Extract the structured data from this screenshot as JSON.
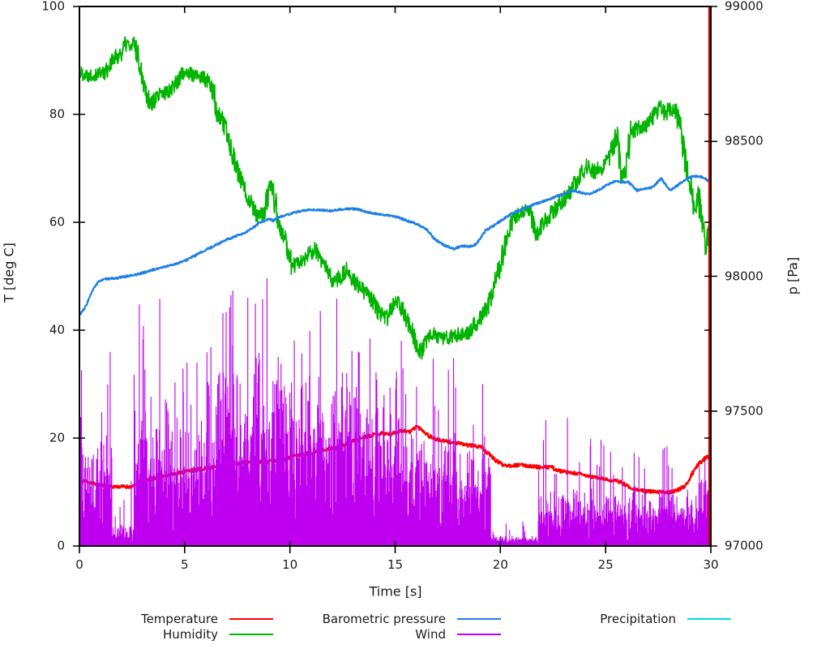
{
  "chart_data": {
    "type": "line",
    "title": "",
    "xlabel": "Time [s]",
    "ylabel_left": "T [deg C]",
    "ylabel_right": "p [Pa]",
    "xlim": [
      0,
      30
    ],
    "ylim_left": [
      0,
      100
    ],
    "ylim_right": [
      97000,
      99000
    ],
    "x_ticks": [
      0,
      5,
      10,
      15,
      20,
      25,
      30
    ],
    "y_ticks_left": [
      0,
      20,
      40,
      60,
      80,
      100
    ],
    "y_ticks_right": [
      97000,
      97500,
      98000,
      98500,
      99000
    ],
    "grid": false,
    "legend_position": "below-chart",
    "series": [
      {
        "name": "Temperature",
        "color": "#ff0000",
        "axis": "left",
        "style": "line",
        "noise": 0.3,
        "legend_slot": {
          "col": 0,
          "row": 0
        },
        "points": [
          [
            0,
            11.6
          ],
          [
            0.2,
            12.1
          ],
          [
            0.5,
            11.8
          ],
          [
            0.9,
            11.3
          ],
          [
            1.3,
            11.1
          ],
          [
            1.5,
            11.0
          ],
          [
            2.0,
            11.0
          ],
          [
            2.6,
            11.0
          ],
          [
            2.75,
            11.8
          ],
          [
            3.2,
            12.3
          ],
          [
            4.0,
            13.0
          ],
          [
            5.0,
            13.8
          ],
          [
            6.0,
            14.4
          ],
          [
            7.0,
            15.0
          ],
          [
            8.0,
            15.5
          ],
          [
            9.0,
            15.7
          ],
          [
            9.8,
            16.0
          ],
          [
            10.1,
            16.7
          ],
          [
            10.6,
            17.0
          ],
          [
            11.0,
            17.3
          ],
          [
            11.6,
            17.9
          ],
          [
            12.3,
            18.2
          ],
          [
            12.9,
            19.3
          ],
          [
            13.4,
            20.0
          ],
          [
            13.9,
            20.6
          ],
          [
            14.4,
            20.9
          ],
          [
            14.8,
            20.7
          ],
          [
            15.1,
            21.2
          ],
          [
            15.4,
            21.4
          ],
          [
            15.7,
            21.1
          ],
          [
            16.0,
            22.2
          ],
          [
            16.3,
            21.5
          ],
          [
            16.6,
            20.4
          ],
          [
            17.0,
            19.7
          ],
          [
            17.5,
            19.3
          ],
          [
            18.0,
            19.0
          ],
          [
            18.6,
            18.6
          ],
          [
            19.1,
            18.4
          ],
          [
            19.4,
            17.2
          ],
          [
            19.8,
            15.8
          ],
          [
            20.1,
            15.1
          ],
          [
            20.5,
            14.9
          ],
          [
            21.0,
            15.0
          ],
          [
            21.5,
            14.8
          ],
          [
            22.0,
            14.5
          ],
          [
            22.4,
            14.7
          ],
          [
            22.7,
            14.0
          ],
          [
            23.2,
            13.6
          ],
          [
            23.7,
            13.4
          ],
          [
            24.2,
            12.9
          ],
          [
            24.7,
            12.6
          ],
          [
            25.2,
            12.2
          ],
          [
            25.7,
            11.9
          ],
          [
            26.1,
            11.0
          ],
          [
            26.5,
            10.4
          ],
          [
            27.0,
            10.1
          ],
          [
            27.5,
            10.0
          ],
          [
            28.0,
            10.0
          ],
          [
            28.4,
            10.3
          ],
          [
            28.75,
            11.0
          ],
          [
            29.0,
            12.5
          ],
          [
            29.2,
            14.0
          ],
          [
            29.45,
            15.3
          ],
          [
            29.7,
            16.2
          ],
          [
            29.85,
            16.6
          ],
          [
            30,
            16.3
          ]
        ]
      },
      {
        "name": "Humidity",
        "color": "#00b400",
        "axis": "left",
        "style": "line",
        "noise": 1.3,
        "legend_slot": {
          "col": 0,
          "row": 1
        },
        "points": [
          [
            0,
            87.8
          ],
          [
            0.4,
            87.3
          ],
          [
            0.8,
            87.6
          ],
          [
            1.2,
            87.8
          ],
          [
            1.5,
            89.5
          ],
          [
            1.8,
            90.8
          ],
          [
            2.0,
            91.5
          ],
          [
            2.25,
            93.3
          ],
          [
            2.45,
            92.3
          ],
          [
            2.6,
            93.2
          ],
          [
            2.8,
            90.5
          ],
          [
            3.1,
            85.5
          ],
          [
            3.35,
            82.0
          ],
          [
            3.55,
            82.5
          ],
          [
            3.8,
            83.5
          ],
          [
            4.1,
            84.0
          ],
          [
            4.5,
            85.5
          ],
          [
            4.8,
            87.0
          ],
          [
            5.05,
            88.2
          ],
          [
            5.3,
            87.3
          ],
          [
            5.6,
            87.0
          ],
          [
            5.9,
            86.8
          ],
          [
            6.15,
            85.8
          ],
          [
            6.35,
            84.5
          ],
          [
            6.5,
            80.5
          ],
          [
            6.75,
            79.0
          ],
          [
            7.0,
            76.5
          ],
          [
            7.3,
            72.5
          ],
          [
            7.6,
            68.5
          ],
          [
            7.9,
            65.5
          ],
          [
            8.2,
            63.5
          ],
          [
            8.5,
            60.8
          ],
          [
            8.8,
            62.0
          ],
          [
            9.05,
            66.5
          ],
          [
            9.2,
            66.0
          ],
          [
            9.35,
            62.5
          ],
          [
            9.55,
            58.5
          ],
          [
            9.8,
            56.5
          ],
          [
            10.1,
            51.8
          ],
          [
            10.45,
            52.5
          ],
          [
            10.8,
            53.5
          ],
          [
            11.15,
            55.0
          ],
          [
            11.5,
            53.0
          ],
          [
            11.8,
            50.5
          ],
          [
            12.1,
            49.0
          ],
          [
            12.45,
            50.0
          ],
          [
            12.75,
            51.3
          ],
          [
            13.1,
            48.8
          ],
          [
            13.5,
            47.3
          ],
          [
            13.9,
            45.5
          ],
          [
            14.25,
            43.2
          ],
          [
            14.6,
            42.2
          ],
          [
            14.95,
            44.8
          ],
          [
            15.2,
            45.3
          ],
          [
            15.5,
            42.3
          ],
          [
            15.8,
            40.0
          ],
          [
            16.05,
            37.2
          ],
          [
            16.25,
            36.0
          ],
          [
            16.5,
            38.0
          ],
          [
            16.8,
            39.2
          ],
          [
            17.2,
            38.6
          ],
          [
            17.6,
            38.5
          ],
          [
            18.0,
            39.4
          ],
          [
            18.45,
            39.7
          ],
          [
            18.8,
            41.0
          ],
          [
            19.1,
            42.6
          ],
          [
            19.4,
            44.5
          ],
          [
            19.7,
            48.2
          ],
          [
            20.0,
            52.2
          ],
          [
            20.3,
            57.0
          ],
          [
            20.6,
            60.6
          ],
          [
            21.0,
            61.6
          ],
          [
            21.35,
            62.2
          ],
          [
            21.7,
            57.8
          ],
          [
            22.0,
            59.8
          ],
          [
            22.4,
            61.5
          ],
          [
            22.9,
            63.7
          ],
          [
            23.4,
            66.2
          ],
          [
            23.8,
            68.6
          ],
          [
            24.1,
            70.4
          ],
          [
            24.45,
            69.4
          ],
          [
            24.8,
            70.2
          ],
          [
            25.2,
            72.2
          ],
          [
            25.55,
            76.3
          ],
          [
            25.75,
            68.8
          ],
          [
            26.0,
            70.5
          ],
          [
            26.2,
            76.7
          ],
          [
            26.6,
            77.6
          ],
          [
            27.0,
            78.2
          ],
          [
            27.35,
            80.0
          ],
          [
            27.6,
            81.3
          ],
          [
            27.85,
            80.2
          ],
          [
            28.1,
            81.2
          ],
          [
            28.35,
            80.3
          ],
          [
            28.6,
            76.5
          ],
          [
            28.85,
            70.0
          ],
          [
            29.05,
            66.5
          ],
          [
            29.2,
            62.3
          ],
          [
            29.4,
            65.2
          ],
          [
            29.6,
            58.5
          ],
          [
            29.75,
            55.2
          ],
          [
            29.9,
            58.0
          ],
          [
            30,
            57.0
          ]
        ]
      },
      {
        "name": "Barometric pressure",
        "color": "#1e7fe8",
        "axis": "right",
        "style": "line",
        "noise": 3.5,
        "legend_slot": {
          "col": 1,
          "row": 0
        },
        "points": [
          [
            0,
            97858
          ],
          [
            0.25,
            97880
          ],
          [
            0.5,
            97925
          ],
          [
            0.75,
            97965
          ],
          [
            1.0,
            97985
          ],
          [
            1.3,
            97990
          ],
          [
            1.7,
            97992
          ],
          [
            2.1,
            97998
          ],
          [
            2.5,
            98003
          ],
          [
            3.0,
            98012
          ],
          [
            3.5,
            98024
          ],
          [
            4.0,
            98034
          ],
          [
            4.5,
            98044
          ],
          [
            5.0,
            98057
          ],
          [
            5.5,
            98077
          ],
          [
            6.0,
            98097
          ],
          [
            6.5,
            98117
          ],
          [
            7.0,
            98136
          ],
          [
            7.4,
            98147
          ],
          [
            7.8,
            98158
          ],
          [
            8.2,
            98177
          ],
          [
            8.6,
            98200
          ],
          [
            9.0,
            98212
          ],
          [
            9.2,
            98206
          ],
          [
            9.5,
            98220
          ],
          [
            9.9,
            98228
          ],
          [
            10.4,
            98240
          ],
          [
            11.0,
            98247
          ],
          [
            11.5,
            98245
          ],
          [
            12.0,
            98243
          ],
          [
            12.4,
            98248
          ],
          [
            12.9,
            98250
          ],
          [
            13.3,
            98247
          ],
          [
            13.7,
            98237
          ],
          [
            14.2,
            98230
          ],
          [
            14.7,
            98225
          ],
          [
            15.1,
            98219
          ],
          [
            15.6,
            98205
          ],
          [
            16.1,
            98192
          ],
          [
            16.5,
            98173
          ],
          [
            16.9,
            98136
          ],
          [
            17.3,
            98116
          ],
          [
            17.8,
            98101
          ],
          [
            18.1,
            98112
          ],
          [
            18.5,
            98110
          ],
          [
            18.8,
            98116
          ],
          [
            19.0,
            98135
          ],
          [
            19.3,
            98170
          ],
          [
            19.7,
            98188
          ],
          [
            20.1,
            98210
          ],
          [
            20.6,
            98235
          ],
          [
            21.1,
            98250
          ],
          [
            21.6,
            98266
          ],
          [
            22.2,
            98282
          ],
          [
            22.7,
            98297
          ],
          [
            23.1,
            98308
          ],
          [
            23.45,
            98318
          ],
          [
            23.8,
            98310
          ],
          [
            24.2,
            98304
          ],
          [
            24.7,
            98321
          ],
          [
            25.1,
            98340
          ],
          [
            25.45,
            98353
          ],
          [
            25.8,
            98350
          ],
          [
            26.1,
            98348
          ],
          [
            26.5,
            98318
          ],
          [
            26.85,
            98325
          ],
          [
            27.2,
            98329
          ],
          [
            27.65,
            98362
          ],
          [
            28.05,
            98318
          ],
          [
            28.4,
            98336
          ],
          [
            28.7,
            98354
          ],
          [
            29.1,
            98369
          ],
          [
            29.45,
            98372
          ],
          [
            29.75,
            98361
          ],
          [
            30,
            98344
          ]
        ]
      },
      {
        "name": "Wind",
        "color": "#bf00f0",
        "axis": "left",
        "style": "impulses",
        "legend_slot": {
          "col": 1,
          "row": 1
        },
        "envelope_segments": [
          [
            0,
            0.3,
            2,
            18,
            49
          ],
          [
            0.3,
            1.55,
            2,
            14,
            40
          ],
          [
            1.55,
            2.6,
            0.4,
            2.5,
            12
          ],
          [
            2.6,
            4.35,
            2,
            17,
            46
          ],
          [
            4.35,
            6.0,
            2,
            15,
            34
          ],
          [
            6.0,
            8.0,
            2.5,
            22,
            48
          ],
          [
            8.0,
            9.6,
            2.5,
            24,
            50
          ],
          [
            9.6,
            11.2,
            2.5,
            20,
            44
          ],
          [
            11.2,
            13.2,
            2.5,
            22,
            48
          ],
          [
            13.2,
            14.8,
            2,
            17,
            40
          ],
          [
            14.8,
            16.2,
            2,
            16,
            38
          ],
          [
            16.2,
            17.9,
            2,
            14,
            36
          ],
          [
            17.9,
            19.55,
            2,
            11,
            30
          ],
          [
            19.55,
            21.8,
            0.25,
            1.2,
            5
          ],
          [
            21.8,
            23.7,
            0.8,
            7,
            26
          ],
          [
            23.7,
            25.3,
            0.8,
            6,
            22
          ],
          [
            25.3,
            26.3,
            1,
            6,
            18
          ],
          [
            26.3,
            28.1,
            1.2,
            7,
            23
          ],
          [
            28.1,
            29.3,
            1.2,
            6,
            16
          ],
          [
            29.3,
            30,
            1.5,
            8,
            18
          ]
        ]
      },
      {
        "name": "Precipitation",
        "color": "#00dcdc",
        "axis": "left",
        "style": "line",
        "noise": 0,
        "legend_slot": {
          "col": 2,
          "row": 0
        },
        "points": [
          [
            0,
            0
          ],
          [
            30,
            0
          ]
        ]
      }
    ],
    "annotations": [
      {
        "type": "vline",
        "x": 30,
        "color": "#cc0000",
        "span_left_axis": [
          0,
          100
        ]
      }
    ]
  }
}
